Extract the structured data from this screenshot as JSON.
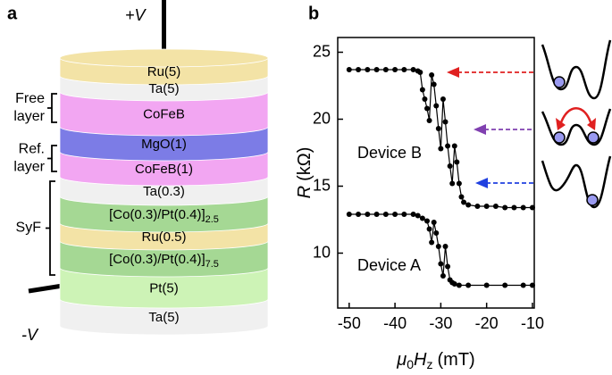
{
  "panel_a": {
    "label": "a",
    "top_voltage": "+V",
    "bottom_voltage": "-V",
    "layers": [
      {
        "text": "Ru(5)",
        "color": "#f3e3a6"
      },
      {
        "text": "Ta(5)",
        "color": "#f0f0f0"
      },
      {
        "text": "CoFeB",
        "color": "#f2a6f2"
      },
      {
        "text": "MgO(1)",
        "color": "#7c7ce6"
      },
      {
        "text": "CoFeB(1)",
        "color": "#f2a6f2"
      },
      {
        "text": "Ta(0.3)",
        "color": "#f0f0f0"
      },
      {
        "text": "[Co(0.3)/Pt(0.4)]",
        "sub": "2.5",
        "color": "#a5d894"
      },
      {
        "text": "Ru(0.5)",
        "color": "#f3e3a6"
      },
      {
        "text": "[Co(0.3)/Pt(0.4)]",
        "sub": "7.5",
        "color": "#a5d894"
      },
      {
        "text": "Pt(5)",
        "color": "#cdf3b6"
      },
      {
        "text": "Ta(5)",
        "color": "#f0f0f0"
      }
    ],
    "groups": [
      {
        "lines": [
          "Free",
          "layer"
        ]
      },
      {
        "lines": [
          "Ref.",
          "layer"
        ]
      },
      {
        "lines": [
          "SyF"
        ]
      }
    ]
  },
  "chart_data": {
    "type": "line",
    "panel_label": "b",
    "x_label": {
      "symbol": "μ",
      "sub1": "0",
      "symbol2": "H",
      "sub2": "z",
      "unit": "(mT)"
    },
    "y_label": {
      "symbol": "R",
      "unit": "(kΩ)"
    },
    "xlim": [
      -52.5,
      -9.6
    ],
    "ylim": [
      5.9,
      26.1
    ],
    "xticks": [
      -50,
      -40,
      -30,
      -20,
      -10
    ],
    "yticks": [
      10,
      15,
      20,
      25
    ],
    "series": [
      {
        "name": "Device B",
        "color": "#000000",
        "x": [
          -50,
          -48,
          -46,
          -44,
          -42,
          -40,
          -38,
          -36,
          -35,
          -34.5,
          -34,
          -33.5,
          -33,
          -32.5,
          -32,
          -31.5,
          -31,
          -30.5,
          -30,
          -29.5,
          -29,
          -28.5,
          -28,
          -27.5,
          -27,
          -26.5,
          -26,
          -25.5,
          -25,
          -24,
          -22,
          -20,
          -18,
          -16,
          -14,
          -12,
          -10
        ],
        "values": [
          23.7,
          23.7,
          23.7,
          23.7,
          23.7,
          23.7,
          23.7,
          23.7,
          23.6,
          23.5,
          22.2,
          21.5,
          20.8,
          19.9,
          23.3,
          22.6,
          21,
          19.3,
          17.8,
          21.5,
          19.8,
          18,
          16.5,
          15.2,
          18,
          16.8,
          15.2,
          14.2,
          13.8,
          13.6,
          13.5,
          13.5,
          13.5,
          13.4,
          13.4,
          13.4,
          13.4
        ]
      },
      {
        "name": "Device A",
        "color": "#000000",
        "x": [
          -50,
          -48,
          -46,
          -44,
          -42,
          -40,
          -38,
          -36,
          -35,
          -34,
          -33,
          -32.5,
          -32,
          -31.5,
          -31,
          -30.5,
          -30,
          -29.5,
          -29,
          -28.5,
          -28,
          -27.5,
          -27,
          -26,
          -24,
          -20,
          -16,
          -12,
          -10
        ],
        "values": [
          12.9,
          12.9,
          12.9,
          12.9,
          12.9,
          12.9,
          12.9,
          12.9,
          12.8,
          12.6,
          12.4,
          11.8,
          10.8,
          12.3,
          11.5,
          10.5,
          9.2,
          8.3,
          10.5,
          9,
          8,
          7.8,
          7.7,
          7.6,
          7.6,
          7.6,
          7.6,
          7.6,
          7.6
        ]
      }
    ]
  }
}
